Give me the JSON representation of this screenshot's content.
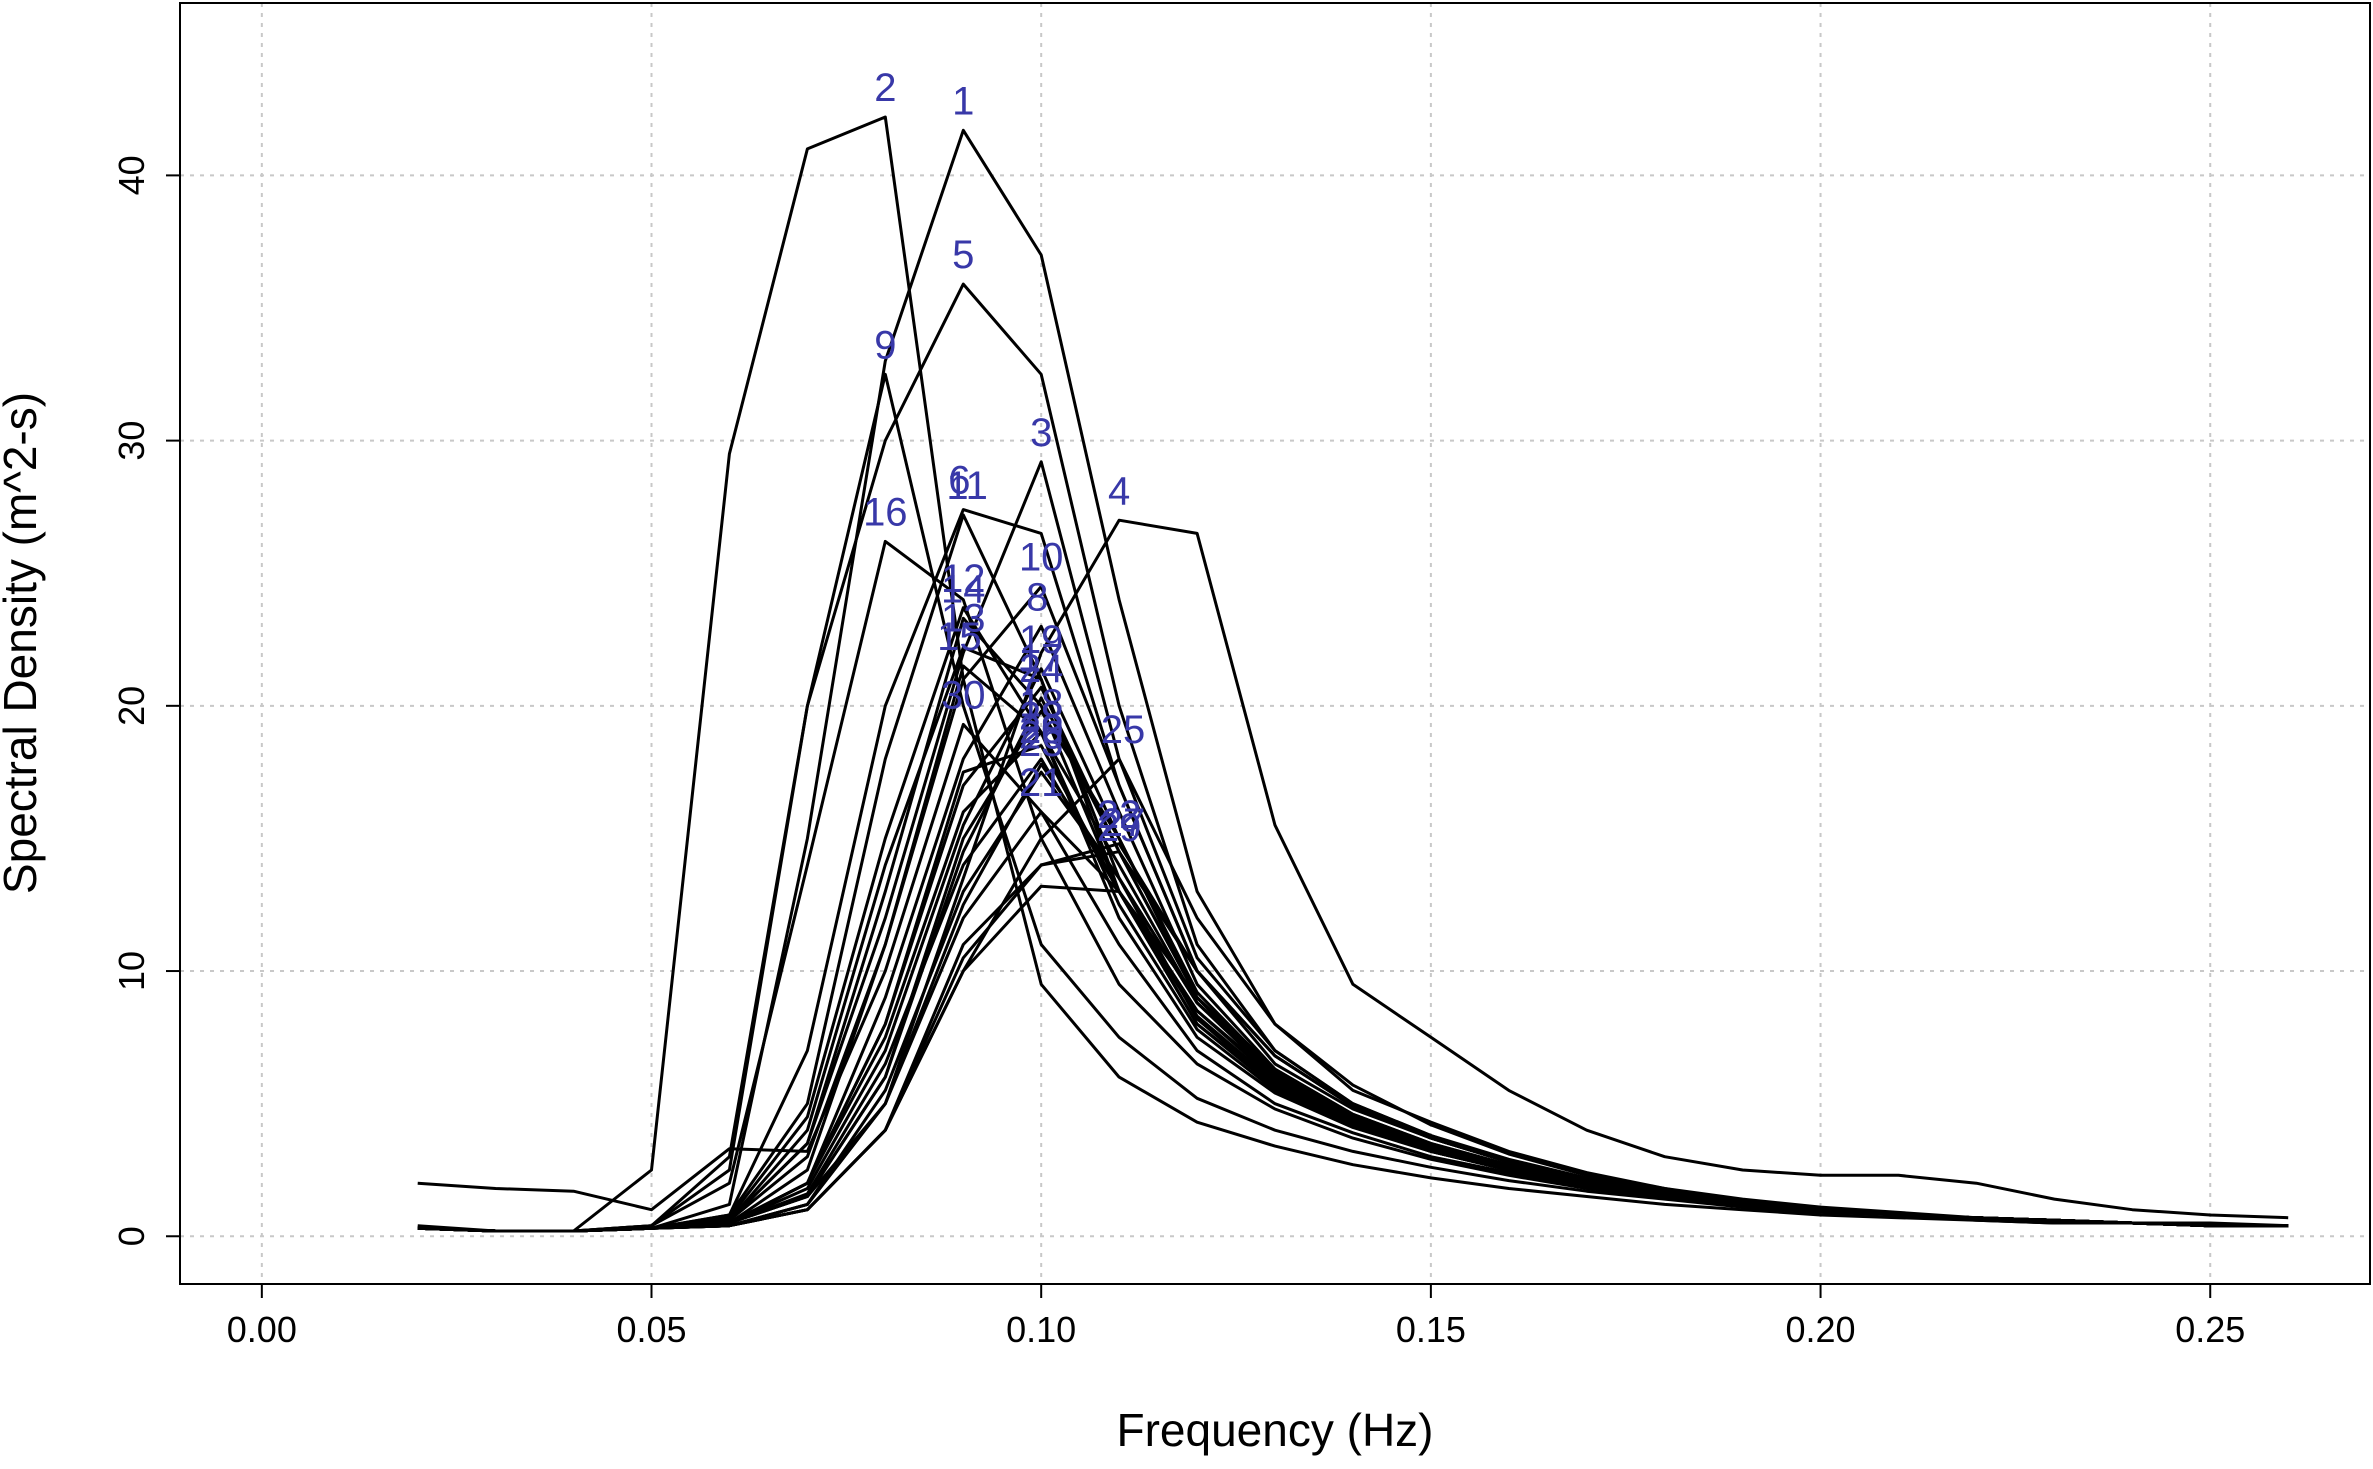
{
  "chart_data": {
    "type": "line",
    "title": "",
    "xlabel": "Frequency (Hz)",
    "ylabel": "Spectral Density (m^2-s)",
    "xlim": [
      -0.0105,
      0.2705
    ],
    "ylim": [
      -1.8,
      46.5
    ],
    "xticks": [
      0.0,
      0.05,
      0.1,
      0.15,
      0.2,
      0.25
    ],
    "xtick_labels": [
      "0.00",
      "0.05",
      "0.10",
      "0.15",
      "0.20",
      "0.25"
    ],
    "yticks": [
      0,
      10,
      20,
      30,
      40
    ],
    "ytick_labels": [
      "0",
      "10",
      "20",
      "30",
      "40"
    ],
    "grid": true,
    "x": [
      0.02,
      0.03,
      0.04,
      0.05,
      0.06,
      0.07,
      0.08,
      0.09,
      0.1,
      0.11,
      0.12,
      0.13,
      0.14,
      0.15,
      0.16,
      0.17,
      0.18,
      0.19,
      0.2,
      0.21,
      0.22,
      0.23,
      0.24,
      0.25,
      0.26
    ],
    "line_color": "#000000",
    "label_color": "#3838a8",
    "series": [
      {
        "name": "1",
        "label": "1",
        "values": [
          0.3,
          0.2,
          0.2,
          0.3,
          1.2,
          15.0,
          33.0,
          41.7,
          37.0,
          24.0,
          13.0,
          8.0,
          5.5,
          4.3,
          3.2,
          2.4,
          1.8,
          1.3,
          1.0,
          0.8,
          0.6,
          0.5,
          0.5,
          0.4,
          0.4
        ]
      },
      {
        "name": "2",
        "label": "2",
        "values": [
          0.4,
          0.2,
          0.2,
          2.5,
          29.5,
          41.0,
          42.2,
          21.0,
          9.5,
          6.0,
          4.3,
          3.4,
          2.7,
          2.2,
          1.8,
          1.5,
          1.2,
          1.0,
          0.8,
          0.7,
          0.6,
          0.5,
          0.5,
          0.4,
          0.4
        ]
      },
      {
        "name": "3",
        "label": "3",
        "values": [
          0.3,
          0.2,
          0.2,
          0.3,
          0.6,
          3.5,
          12.0,
          22.0,
          29.2,
          18.0,
          10.5,
          7.0,
          5.0,
          3.8,
          2.8,
          2.1,
          1.6,
          1.3,
          1.0,
          0.8,
          0.7,
          0.6,
          0.5,
          0.5,
          0.4
        ]
      },
      {
        "name": "4",
        "label": "4",
        "values": [
          0.3,
          0.2,
          0.2,
          0.3,
          0.5,
          1.5,
          5.0,
          13.5,
          22.0,
          27.0,
          26.5,
          15.5,
          9.5,
          7.5,
          5.5,
          4.0,
          3.0,
          2.5,
          2.3,
          2.3,
          2.0,
          1.4,
          1.0,
          0.8,
          0.7
        ]
      },
      {
        "name": "5",
        "label": "5",
        "values": [
          0.3,
          0.2,
          0.2,
          0.4,
          3.0,
          20.0,
          30.0,
          35.9,
          32.5,
          20.0,
          11.0,
          7.0,
          5.0,
          3.8,
          2.9,
          2.2,
          1.7,
          1.3,
          1.0,
          0.8,
          0.7,
          0.6,
          0.5,
          0.4,
          0.4
        ]
      },
      {
        "name": "6",
        "label": "6",
        "values": [
          0.3,
          0.2,
          0.2,
          0.3,
          0.8,
          7.0,
          20.0,
          27.4,
          26.5,
          17.0,
          10.0,
          6.5,
          4.8,
          3.7,
          2.8,
          2.1,
          1.6,
          1.3,
          1.0,
          0.8,
          0.7,
          0.6,
          0.5,
          0.4,
          0.4
        ]
      },
      {
        "name": "7",
        "label": "7",
        "values": [
          0.3,
          0.2,
          0.2,
          0.3,
          0.5,
          1.5,
          6.0,
          15.0,
          19.8,
          15.0,
          9.0,
          6.0,
          4.4,
          3.4,
          2.6,
          2.0,
          1.6,
          1.3,
          1.0,
          0.8,
          0.7,
          0.6,
          0.5,
          0.4,
          0.4
        ]
      },
      {
        "name": "8",
        "label": "8",
        "values": [
          0.3,
          0.2,
          0.2,
          0.3,
          0.5,
          2.0,
          9.0,
          18.0,
          23.0,
          16.0,
          9.5,
          6.3,
          4.6,
          3.5,
          2.6,
          2.0,
          1.5,
          1.2,
          1.0,
          0.8,
          0.7,
          0.6,
          0.5,
          0.4,
          0.4
        ]
      },
      {
        "name": "9",
        "label": "9",
        "values": [
          0.3,
          0.2,
          0.2,
          0.4,
          2.5,
          20.0,
          32.5,
          20.0,
          11.0,
          7.5,
          5.2,
          4.0,
          3.2,
          2.6,
          2.1,
          1.7,
          1.4,
          1.1,
          0.9,
          0.8,
          0.7,
          0.6,
          0.5,
          0.4,
          0.4
        ]
      },
      {
        "name": "10",
        "label": "10",
        "values": [
          0.3,
          0.2,
          0.2,
          0.3,
          0.6,
          3.0,
          11.0,
          21.0,
          24.5,
          17.0,
          10.0,
          6.8,
          4.9,
          3.7,
          2.8,
          2.1,
          1.6,
          1.3,
          1.0,
          0.8,
          0.7,
          0.6,
          0.5,
          0.4,
          0.4
        ]
      },
      {
        "name": "11",
        "label": "11",
        "values": [
          0.3,
          0.2,
          0.2,
          0.3,
          0.8,
          5.0,
          18.0,
          27.2,
          21.0,
          13.0,
          8.0,
          5.7,
          4.3,
          3.3,
          2.6,
          2.0,
          1.6,
          1.3,
          1.0,
          0.8,
          0.7,
          0.6,
          0.5,
          0.4,
          0.4
        ]
      },
      {
        "name": "12",
        "label": "12",
        "values": [
          0.3,
          0.2,
          0.2,
          0.3,
          0.7,
          4.5,
          15.0,
          23.7,
          19.0,
          12.0,
          7.5,
          5.4,
          4.1,
          3.2,
          2.5,
          2.0,
          1.6,
          1.3,
          1.0,
          0.8,
          0.7,
          0.6,
          0.5,
          0.4,
          0.4
        ]
      },
      {
        "name": "13",
        "label": "13",
        "values": [
          0.3,
          0.2,
          0.2,
          0.3,
          0.6,
          4.0,
          14.0,
          22.2,
          21.0,
          13.5,
          8.2,
          5.7,
          4.3,
          3.3,
          2.6,
          2.0,
          1.6,
          1.3,
          1.0,
          0.8,
          0.7,
          0.6,
          0.5,
          0.4,
          0.4
        ]
      },
      {
        "name": "14",
        "label": "14",
        "values": [
          0.3,
          0.2,
          0.2,
          0.3,
          0.6,
          3.5,
          13.0,
          23.3,
          20.0,
          13.0,
          8.0,
          5.6,
          4.2,
          3.2,
          2.5,
          2.0,
          1.6,
          1.3,
          1.0,
          0.8,
          0.7,
          0.6,
          0.5,
          0.4,
          0.4
        ]
      },
      {
        "name": "15",
        "label": "15",
        "values": [
          0.3,
          0.2,
          0.2,
          0.3,
          0.5,
          2.5,
          11.0,
          21.5,
          19.0,
          12.5,
          7.8,
          5.5,
          4.2,
          3.2,
          2.5,
          2.0,
          1.6,
          1.3,
          1.0,
          0.8,
          0.7,
          0.6,
          0.5,
          0.4,
          0.4
        ]
      },
      {
        "name": "16",
        "label": "16",
        "values": [
          0.3,
          0.2,
          0.2,
          0.4,
          2.0,
          14.0,
          26.2,
          24.0,
          15.0,
          9.5,
          6.5,
          4.8,
          3.7,
          2.9,
          2.3,
          1.8,
          1.5,
          1.2,
          1.0,
          0.8,
          0.7,
          0.6,
          0.5,
          0.4,
          0.4
        ]
      },
      {
        "name": "17",
        "label": "17",
        "values": [
          0.3,
          0.2,
          0.2,
          0.3,
          0.5,
          2.0,
          8.0,
          17.0,
          20.7,
          14.5,
          9.0,
          6.1,
          4.5,
          3.4,
          2.6,
          2.0,
          1.6,
          1.3,
          1.0,
          0.8,
          0.7,
          0.6,
          0.5,
          0.4,
          0.4
        ]
      },
      {
        "name": "18",
        "label": "18",
        "values": [
          0.3,
          0.2,
          0.2,
          0.3,
          0.5,
          2.0,
          7.5,
          16.0,
          19.0,
          14.0,
          8.8,
          6.0,
          4.4,
          3.4,
          2.6,
          2.0,
          1.6,
          1.3,
          1.0,
          0.8,
          0.7,
          0.6,
          0.5,
          0.4,
          0.4
        ]
      },
      {
        "name": "19",
        "label": "19",
        "values": [
          0.3,
          0.2,
          0.2,
          0.3,
          0.5,
          1.8,
          7.0,
          15.5,
          21.4,
          15.0,
          9.2,
          6.2,
          4.5,
          3.4,
          2.6,
          2.0,
          1.6,
          1.3,
          1.0,
          0.8,
          0.7,
          0.6,
          0.5,
          0.4,
          0.4
        ]
      },
      {
        "name": "20",
        "label": "20",
        "values": [
          0.3,
          0.2,
          0.2,
          0.3,
          0.5,
          1.6,
          6.5,
          14.0,
          18.0,
          13.0,
          8.5,
          5.9,
          4.4,
          3.4,
          2.6,
          2.0,
          1.6,
          1.3,
          1.0,
          0.8,
          0.7,
          0.6,
          0.5,
          0.4,
          0.4
        ]
      },
      {
        "name": "21",
        "label": "21",
        "values": [
          0.3,
          0.2,
          0.2,
          0.3,
          0.4,
          1.2,
          5.0,
          12.0,
          16.0,
          13.0,
          8.5,
          6.0,
          4.4,
          3.4,
          2.6,
          2.0,
          1.6,
          1.3,
          1.0,
          0.8,
          0.7,
          0.6,
          0.5,
          0.4,
          0.4
        ]
      },
      {
        "name": "22",
        "label": "22",
        "values": [
          0.3,
          0.2,
          0.2,
          0.3,
          0.4,
          1.0,
          4.0,
          11.0,
          14.0,
          14.8,
          10.0,
          6.8,
          4.9,
          3.7,
          2.8,
          2.1,
          1.6,
          1.3,
          1.0,
          0.8,
          0.7,
          0.6,
          0.5,
          0.4,
          0.4
        ]
      },
      {
        "name": "23",
        "label": "23",
        "values": [
          0.3,
          0.2,
          0.2,
          0.3,
          0.4,
          1.2,
          5.5,
          13.0,
          17.5,
          13.5,
          8.8,
          6.1,
          4.5,
          3.4,
          2.6,
          2.0,
          1.6,
          1.3,
          1.0,
          0.8,
          0.7,
          0.6,
          0.5,
          0.4,
          0.4
        ]
      },
      {
        "name": "24",
        "label": "24",
        "values": [
          0.3,
          0.2,
          0.2,
          0.3,
          0.5,
          1.5,
          6.0,
          14.5,
          20.3,
          14.5,
          9.0,
          6.1,
          4.5,
          3.4,
          2.6,
          2.0,
          1.6,
          1.3,
          1.0,
          0.8,
          0.7,
          0.6,
          0.5,
          0.4,
          0.4
        ]
      },
      {
        "name": "25",
        "label": "25",
        "values": [
          0.3,
          0.2,
          0.2,
          0.3,
          0.4,
          1.0,
          4.0,
          10.0,
          15.0,
          18.0,
          12.0,
          8.0,
          5.7,
          4.2,
          3.1,
          2.3,
          1.8,
          1.4,
          1.1,
          0.9,
          0.7,
          0.6,
          0.5,
          0.4,
          0.4
        ]
      },
      {
        "name": "26",
        "label": "26",
        "values": [
          0.3,
          0.2,
          0.2,
          0.3,
          0.4,
          1.2,
          5.0,
          12.5,
          17.8,
          13.5,
          8.8,
          6.1,
          4.5,
          3.4,
          2.6,
          2.0,
          1.6,
          1.3,
          1.0,
          0.8,
          0.7,
          0.6,
          0.5,
          0.4,
          0.4
        ]
      },
      {
        "name": "27",
        "label": "27",
        "values": [
          0.3,
          0.2,
          0.2,
          0.3,
          0.4,
          1.0,
          4.0,
          10.5,
          14.0,
          14.5,
          10.0,
          6.8,
          4.9,
          3.7,
          2.8,
          2.1,
          1.6,
          1.3,
          1.0,
          0.8,
          0.7,
          0.6,
          0.5,
          0.4,
          0.4
        ]
      },
      {
        "name": "28",
        "label": "28",
        "values": [
          0.3,
          0.2,
          0.2,
          0.3,
          0.5,
          2.0,
          8.0,
          17.5,
          18.5,
          13.0,
          8.3,
          5.8,
          4.3,
          3.3,
          2.6,
          2.0,
          1.6,
          1.3,
          1.0,
          0.8,
          0.7,
          0.6,
          0.5,
          0.4,
          0.4
        ]
      },
      {
        "name": "29",
        "label": "29",
        "values": [
          0.3,
          0.2,
          0.2,
          0.3,
          0.4,
          1.0,
          4.0,
          10.0,
          13.2,
          13.0,
          9.0,
          6.3,
          4.6,
          3.5,
          2.7,
          2.1,
          1.6,
          1.3,
          1.0,
          0.8,
          0.7,
          0.6,
          0.5,
          0.4,
          0.4
        ]
      },
      {
        "name": "30",
        "label": "30",
        "values": [
          2.0,
          1.8,
          1.7,
          1.0,
          3.3,
          3.2,
          10.0,
          19.3,
          16.0,
          11.0,
          7.0,
          5.0,
          3.9,
          3.0,
          2.4,
          1.9,
          1.5,
          1.2,
          1.0,
          0.8,
          0.7,
          0.6,
          0.5,
          0.4,
          0.4
        ]
      }
    ],
    "labels": [
      {
        "text": "1",
        "x": 0.09,
        "y": 42.3
      },
      {
        "text": "2",
        "x": 0.08,
        "y": 42.8
      },
      {
        "text": "3",
        "x": 0.1,
        "y": 29.8
      },
      {
        "text": "4",
        "x": 0.11,
        "y": 27.6
      },
      {
        "text": "5",
        "x": 0.09,
        "y": 36.5
      },
      {
        "text": "6",
        "x": 0.0895,
        "y": 28.0
      },
      {
        "text": "7",
        "x": 0.0985,
        "y": 20.4
      },
      {
        "text": "8",
        "x": 0.0995,
        "y": 23.6
      },
      {
        "text": "9",
        "x": 0.08,
        "y": 33.1
      },
      {
        "text": "10",
        "x": 0.1,
        "y": 25.1
      },
      {
        "text": "11",
        "x": 0.0905,
        "y": 27.8
      },
      {
        "text": "12",
        "x": 0.09,
        "y": 24.3
      },
      {
        "text": "13",
        "x": 0.09,
        "y": 22.8
      },
      {
        "text": "14",
        "x": 0.09,
        "y": 23.9
      },
      {
        "text": "15",
        "x": 0.0895,
        "y": 22.1
      },
      {
        "text": "16",
        "x": 0.08,
        "y": 26.8
      },
      {
        "text": "17",
        "x": 0.1,
        "y": 21.3
      },
      {
        "text": "18",
        "x": 0.1,
        "y": 19.6
      },
      {
        "text": "19",
        "x": 0.1,
        "y": 22.0
      },
      {
        "text": "20",
        "x": 0.1,
        "y": 18.6
      },
      {
        "text": "21",
        "x": 0.1,
        "y": 16.6
      },
      {
        "text": "22",
        "x": 0.11,
        "y": 15.4
      },
      {
        "text": "23",
        "x": 0.1,
        "y": 18.1
      },
      {
        "text": "24",
        "x": 0.1,
        "y": 20.9
      },
      {
        "text": "25",
        "x": 0.1105,
        "y": 18.6
      },
      {
        "text": "26",
        "x": 0.1,
        "y": 18.4
      },
      {
        "text": "27",
        "x": 0.1105,
        "y": 15.1
      },
      {
        "text": "28",
        "x": 0.1,
        "y": 19.1
      },
      {
        "text": "29",
        "x": 0.11,
        "y": 14.9
      },
      {
        "text": "30",
        "x": 0.09,
        "y": 19.9
      }
    ]
  }
}
